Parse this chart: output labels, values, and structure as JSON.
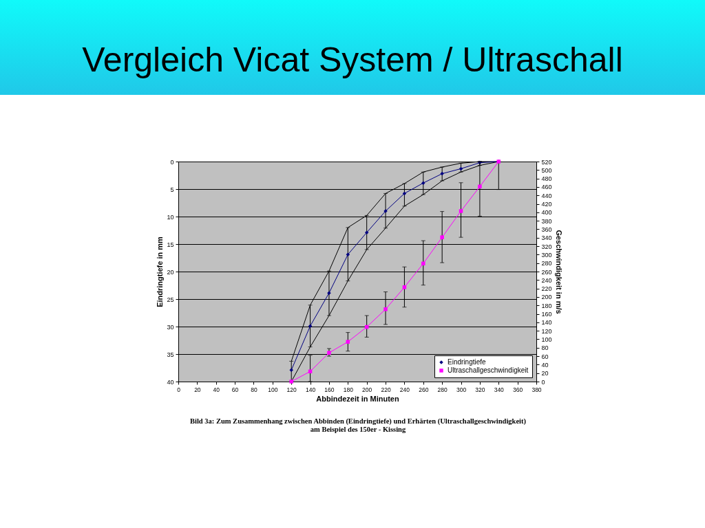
{
  "chart_data": {
    "type": "line",
    "title": "Vergleich Vicat System / Ultraschall",
    "xlabel": "Abbindezeit in Minuten",
    "ylabel": "Eindringtiefe in mm",
    "y2label": "Geschwindigkeit in m/s",
    "annotations": [
      "Bild 3a: Zum Zusammenhang zwischen Abbinden (Eindringtiefe) und Erhärten (Ultraschallgeschwindigkeit) am Beispiel des 150er - Kissing"
    ],
    "x": [
      120,
      140,
      160,
      180,
      200,
      220,
      240,
      260,
      280,
      300,
      320,
      340
    ],
    "xlim": [
      0,
      380
    ],
    "xticks": [
      0,
      20,
      40,
      60,
      80,
      100,
      120,
      140,
      160,
      180,
      200,
      220,
      240,
      260,
      280,
      300,
      320,
      340,
      360,
      380
    ],
    "ylim": [
      40,
      0
    ],
    "yticks": [
      0,
      5,
      10,
      15,
      20,
      25,
      30,
      35,
      40
    ],
    "y2lim": [
      0,
      520
    ],
    "y2ticks": [
      0,
      20,
      40,
      60,
      80,
      100,
      120,
      140,
      160,
      180,
      200,
      220,
      240,
      260,
      280,
      300,
      320,
      340,
      360,
      380,
      400,
      420,
      440,
      460,
      480,
      500,
      520
    ],
    "grid": "y",
    "legend": "bottom right",
    "line_style": "solid",
    "series": [
      {
        "color": "#000000",
        "marker": "none",
        "values": [
          36.3,
          26.1,
          19.9,
          12,
          9.8,
          5.8,
          4,
          1.9,
          1,
          0.3,
          0,
          0
        ]
      },
      {
        "color": "#000000",
        "marker": "none",
        "values": [
          40,
          33.7,
          28,
          21.7,
          16,
          12.1,
          8.1,
          6,
          3.5,
          1.9,
          0.7,
          0
        ]
      },
      {
        "name": "Eindringtiefe",
        "color": "#000080",
        "marker": "diamond",
        "values": [
          37.9,
          29.9,
          23.9,
          16.9,
          12.9,
          9,
          5.8,
          3.9,
          2.2,
          1.3,
          0.2,
          0
        ],
        "errors": [
          [
            36.3,
            40
          ],
          [
            26.1,
            33.7
          ],
          [
            19.9,
            28
          ],
          [
            12,
            21.7
          ],
          [
            9.8,
            16
          ],
          [
            5.8,
            12.1
          ],
          [
            4,
            8.1
          ],
          [
            1.9,
            6
          ],
          [
            1,
            3.5
          ],
          [
            0.3,
            1.9
          ],
          [
            0,
            0.7
          ],
          null
        ]
      },
      {
        "name": "Ultraschallgeschwindigkeit",
        "color": "#ff00ff",
        "marker": "square",
        "axis": "y2",
        "values": [
          0,
          24,
          68,
          94,
          129,
          171,
          223,
          279,
          341,
          403,
          461,
          520
        ],
        "errors": [
          null,
          [
            0,
            62
          ],
          [
            60,
            78
          ],
          [
            72,
            116
          ],
          [
            105,
            156
          ],
          [
            135,
            212
          ],
          [
            176,
            271
          ],
          [
            228,
            333
          ],
          [
            281,
            402
          ],
          [
            341,
            470
          ],
          [
            391,
            520
          ],
          [
            454,
            520
          ]
        ]
      }
    ]
  }
}
